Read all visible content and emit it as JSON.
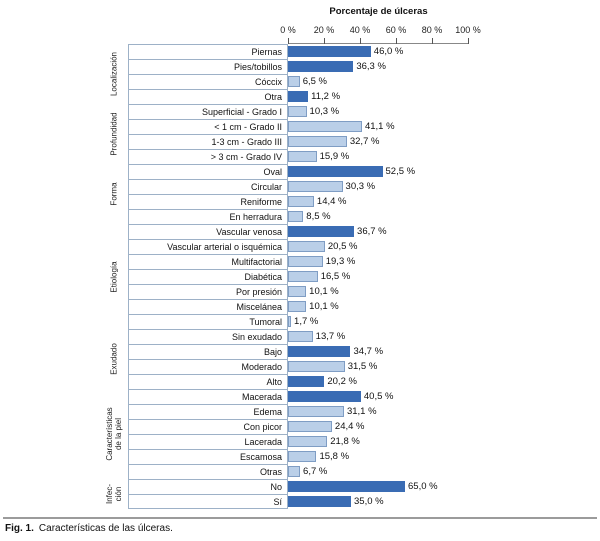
{
  "title": "Porcentaje de úlceras",
  "axis": {
    "ticks": [
      "0 %",
      "20 %",
      "40 %",
      "60 %",
      "80 %",
      "100 %"
    ]
  },
  "caption": {
    "label": "Fig. 1.",
    "text": "Características de las úlceras."
  },
  "colors": {
    "dark": "#3a6cb4",
    "light": "#bacfe8",
    "light_border": "#7f9dc4",
    "cell_border": "#9db1c7"
  },
  "chart_data": {
    "type": "bar",
    "orientation": "horizontal",
    "title": "Porcentaje de úlceras",
    "value_unit": "%",
    "xlim": [
      0,
      100
    ],
    "x_ticks": [
      0,
      20,
      40,
      60,
      80,
      100
    ],
    "grid": false,
    "groups": [
      {
        "label": "Localización",
        "items": [
          {
            "label": "Piernas",
            "value": 46.0,
            "value_label": "46,0 %",
            "shade": "dark"
          },
          {
            "label": "Pies/tobillos",
            "value": 36.3,
            "value_label": "36,3 %",
            "shade": "dark"
          },
          {
            "label": "Cóccix",
            "value": 6.5,
            "value_label": "6,5 %",
            "shade": "light"
          },
          {
            "label": "Otra",
            "value": 11.2,
            "value_label": "11,2 %",
            "shade": "dark"
          }
        ]
      },
      {
        "label": "Profundidad",
        "items": [
          {
            "label": "Superficial - Grado I",
            "value": 10.3,
            "value_label": "10,3 %",
            "shade": "light"
          },
          {
            "label": "< 1 cm - Grado II",
            "value": 41.1,
            "value_label": "41,1 %",
            "shade": "light"
          },
          {
            "label": "1-3 cm - Grado III",
            "value": 32.7,
            "value_label": "32,7 %",
            "shade": "light"
          },
          {
            "label": "> 3 cm - Grado IV",
            "value": 15.9,
            "value_label": "15,9 %",
            "shade": "light"
          }
        ]
      },
      {
        "label": "Forma",
        "items": [
          {
            "label": "Oval",
            "value": 52.5,
            "value_label": "52,5 %",
            "shade": "dark"
          },
          {
            "label": "Circular",
            "value": 30.3,
            "value_label": "30,3 %",
            "shade": "light"
          },
          {
            "label": "Reniforme",
            "value": 14.4,
            "value_label": "14,4 %",
            "shade": "light"
          },
          {
            "label": "En herradura",
            "value": 8.5,
            "value_label": "8,5 %",
            "shade": "light"
          }
        ]
      },
      {
        "label": "Etiología",
        "items": [
          {
            "label": "Vascular venosa",
            "value": 36.7,
            "value_label": "36,7 %",
            "shade": "dark"
          },
          {
            "label": "Vascular arterial o isquémica",
            "value": 20.5,
            "value_label": "20,5 %",
            "shade": "light"
          },
          {
            "label": "Multifactorial",
            "value": 19.3,
            "value_label": "19,3 %",
            "shade": "light"
          },
          {
            "label": "Diabética",
            "value": 16.5,
            "value_label": "16,5 %",
            "shade": "light"
          },
          {
            "label": "Por presión",
            "value": 10.1,
            "value_label": "10,1 %",
            "shade": "light"
          },
          {
            "label": "Miscelánea",
            "value": 10.1,
            "value_label": "10,1 %",
            "shade": "light"
          },
          {
            "label": "Tumoral",
            "value": 1.7,
            "value_label": "1,7 %",
            "shade": "light"
          }
        ]
      },
      {
        "label": "Exudado",
        "items": [
          {
            "label": "Sin exudado",
            "value": 13.7,
            "value_label": "13,7 %",
            "shade": "light"
          },
          {
            "label": "Bajo",
            "value": 34.7,
            "value_label": "34,7 %",
            "shade": "dark"
          },
          {
            "label": "Moderado",
            "value": 31.5,
            "value_label": "31,5 %",
            "shade": "light"
          },
          {
            "label": "Alto",
            "value": 20.2,
            "value_label": "20,2 %",
            "shade": "dark"
          }
        ]
      },
      {
        "label": "Características\nde la piel",
        "items": [
          {
            "label": "Macerada",
            "value": 40.5,
            "value_label": "40,5 %",
            "shade": "dark"
          },
          {
            "label": "Edema",
            "value": 31.1,
            "value_label": "31,1 %",
            "shade": "light"
          },
          {
            "label": "Con picor",
            "value": 24.4,
            "value_label": "24,4 %",
            "shade": "light"
          },
          {
            "label": "Lacerada",
            "value": 21.8,
            "value_label": "21,8 %",
            "shade": "light"
          },
          {
            "label": "Escamosa",
            "value": 15.8,
            "value_label": "15,8 %",
            "shade": "light"
          },
          {
            "label": "Otras",
            "value": 6.7,
            "value_label": "6,7 %",
            "shade": "light"
          }
        ]
      },
      {
        "label": "Infec-\nción",
        "items": [
          {
            "label": "No",
            "value": 65.0,
            "value_label": "65,0 %",
            "shade": "dark"
          },
          {
            "label": "Sí",
            "value": 35.0,
            "value_label": "35,0 %",
            "shade": "dark"
          }
        ]
      }
    ]
  }
}
